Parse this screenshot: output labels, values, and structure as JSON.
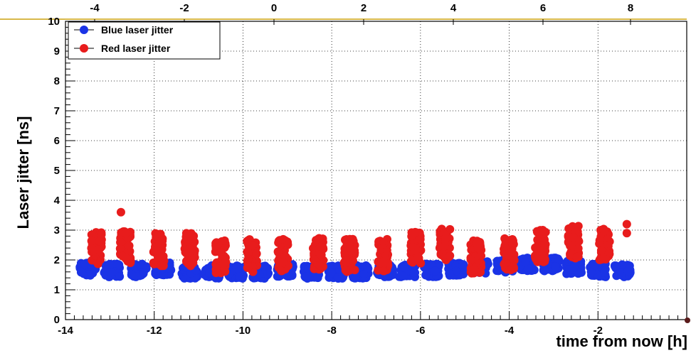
{
  "chart_data": {
    "type": "scatter",
    "xlabel": "time from now [h]",
    "ylabel": "Laser jitter [ns]",
    "xlim": [
      -14,
      0
    ],
    "ylim": [
      0,
      10
    ],
    "x_ticks": [
      "-14",
      "-12",
      "-10",
      "-8",
      "-6",
      "-4",
      "-2"
    ],
    "y_ticks": [
      "0",
      "1",
      "2",
      "3",
      "4",
      "5",
      "6",
      "7",
      "8",
      "9",
      "10"
    ],
    "top_axis_ticks": [
      "-4",
      "-2",
      "0",
      "2",
      "4",
      "6",
      "8"
    ],
    "grid": true,
    "legend_position": "top-left",
    "series": [
      {
        "name": "Blue laser jitter",
        "color": "#1a33e6",
        "clusters": [
          {
            "x": -13.5,
            "y": 1.7
          },
          {
            "x": -12.95,
            "y": 1.65
          },
          {
            "x": -12.35,
            "y": 1.65
          },
          {
            "x": -11.8,
            "y": 1.7
          },
          {
            "x": -11.2,
            "y": 1.6
          },
          {
            "x": -10.7,
            "y": 1.6
          },
          {
            "x": -10.15,
            "y": 1.6
          },
          {
            "x": -9.6,
            "y": 1.6
          },
          {
            "x": -9.05,
            "y": 1.65
          },
          {
            "x": -8.45,
            "y": 1.6
          },
          {
            "x": -7.9,
            "y": 1.6
          },
          {
            "x": -7.35,
            "y": 1.6
          },
          {
            "x": -6.8,
            "y": 1.65
          },
          {
            "x": -6.3,
            "y": 1.65
          },
          {
            "x": -5.75,
            "y": 1.65
          },
          {
            "x": -5.2,
            "y": 1.7
          },
          {
            "x": -4.65,
            "y": 1.75
          },
          {
            "x": -4.1,
            "y": 1.8
          },
          {
            "x": -3.6,
            "y": 1.85
          },
          {
            "x": -3.05,
            "y": 1.85
          },
          {
            "x": -2.55,
            "y": 1.75
          },
          {
            "x": -2.0,
            "y": 1.65
          },
          {
            "x": -1.45,
            "y": 1.65
          }
        ]
      },
      {
        "name": "Red laser jitter",
        "color": "#e81c1c",
        "clusters": [
          {
            "x": -13.3,
            "y": 2.4
          },
          {
            "x": -12.65,
            "y": 2.45
          },
          {
            "x": -11.9,
            "y": 2.35
          },
          {
            "x": -11.2,
            "y": 2.35
          },
          {
            "x": -10.5,
            "y": 2.1
          },
          {
            "x": -9.8,
            "y": 2.15
          },
          {
            "x": -9.1,
            "y": 2.15
          },
          {
            "x": -8.3,
            "y": 2.2
          },
          {
            "x": -7.6,
            "y": 2.15
          },
          {
            "x": -6.85,
            "y": 2.15
          },
          {
            "x": -6.1,
            "y": 2.4
          },
          {
            "x": -5.45,
            "y": 2.55
          },
          {
            "x": -4.75,
            "y": 2.1
          },
          {
            "x": -4.0,
            "y": 2.2
          },
          {
            "x": -3.3,
            "y": 2.45
          },
          {
            "x": -2.55,
            "y": 2.6
          },
          {
            "x": -1.85,
            "y": 2.55
          }
        ],
        "outliers": [
          {
            "x": -12.75,
            "y": 3.6
          },
          {
            "x": -1.35,
            "y": 3.2
          },
          {
            "x": -1.35,
            "y": 2.9
          }
        ]
      }
    ]
  }
}
